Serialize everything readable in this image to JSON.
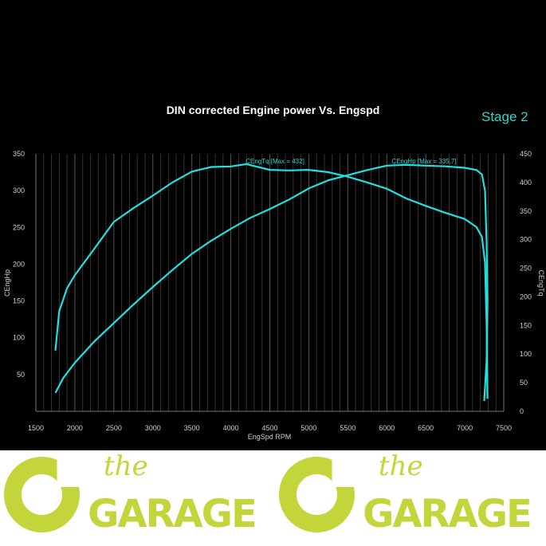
{
  "chart_data": {
    "type": "line",
    "title": "DIN corrected Engine power Vs. Engspd",
    "annotation": "Stage 2",
    "xlabel": "EngSpd RPM",
    "ylabel": "CEngHp",
    "y2label": "CEngTq",
    "xlim": [
      1500,
      7500
    ],
    "ylim": [
      0,
      350
    ],
    "y2lim": [
      0,
      450
    ],
    "xticks": [
      1500,
      2000,
      2500,
      3000,
      3500,
      4000,
      4500,
      5000,
      5500,
      6000,
      6500,
      7000,
      7500
    ],
    "yticks": [
      50,
      100,
      150,
      200,
      250,
      300,
      350
    ],
    "y2ticks": [
      0,
      50,
      100,
      150,
      200,
      250,
      300,
      350,
      400,
      450
    ],
    "grid": true,
    "series": [
      {
        "name": "CEngHp",
        "label": "CEngHp [Max = 335,7]",
        "axis": "left",
        "color": "#22e0e0",
        "x": [
          1750,
          1850,
          2000,
          2250,
          2500,
          2750,
          3000,
          3250,
          3500,
          3750,
          4000,
          4250,
          4500,
          4750,
          5000,
          5250,
          5500,
          5750,
          6000,
          6250,
          6500,
          6750,
          7000,
          7150,
          7220,
          7260,
          7280,
          7290,
          7280,
          7250
        ],
        "y": [
          25,
          45,
          66,
          95,
          120,
          145,
          169,
          192,
          214,
          232,
          248,
          263,
          275,
          288,
          303,
          314,
          321,
          328,
          334,
          335,
          334,
          333,
          331,
          328,
          322,
          300,
          230,
          150,
          70,
          14
        ]
      },
      {
        "name": "CEngTq",
        "label": "CEngTq [Max = 432]",
        "axis": "right",
        "color": "#22e0e0",
        "x": [
          1750,
          1800,
          1900,
          2000,
          2200,
          2500,
          2750,
          3000,
          3250,
          3500,
          3750,
          4000,
          4200,
          4500,
          4750,
          5000,
          5250,
          5500,
          5750,
          6000,
          6250,
          6500,
          6750,
          7000,
          7150,
          7220,
          7260,
          7280,
          7290
        ],
        "y": [
          106,
          175,
          215,
          238,
          275,
          331,
          355,
          377,
          400,
          419,
          427,
          428,
          432,
          422,
          421,
          422,
          418,
          410,
          400,
          389,
          372,
          359,
          347,
          336,
          322,
          305,
          260,
          150,
          22
        ]
      }
    ]
  }
}
